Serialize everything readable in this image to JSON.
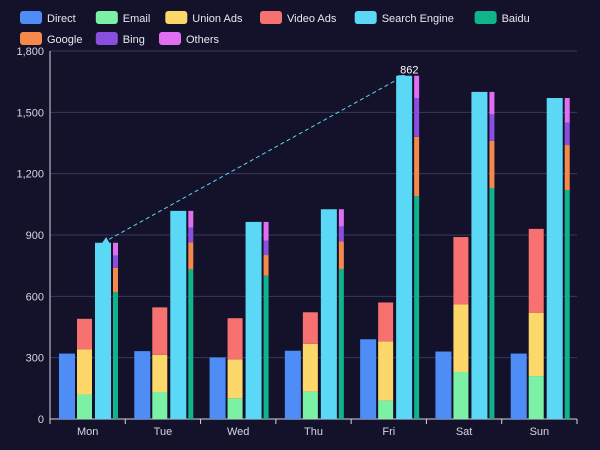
{
  "chart_data": {
    "type": "bar",
    "stacked_groups": true,
    "categories": [
      "Mon",
      "Tue",
      "Wed",
      "Thu",
      "Fri",
      "Sat",
      "Sun"
    ],
    "ylim": [
      0,
      1800
    ],
    "yticks": [
      "0",
      "300",
      "600",
      "900",
      "1,200",
      "1,500",
      "1,800"
    ],
    "grid": true,
    "legend_position": "top-left",
    "series": [
      {
        "name": "Direct",
        "stack": "direct",
        "color": "#4e8df5",
        "values": [
          320,
          332,
          301,
          334,
          390,
          330,
          320
        ]
      },
      {
        "name": "Email",
        "stack": "ad",
        "color": "#7bf1a6",
        "values": [
          120,
          132,
          101,
          134,
          90,
          230,
          210
        ]
      },
      {
        "name": "Union Ads",
        "stack": "ad",
        "color": "#fcd86a",
        "values": [
          220,
          182,
          191,
          234,
          290,
          330,
          310
        ]
      },
      {
        "name": "Video Ads",
        "stack": "ad",
        "color": "#f87171",
        "values": [
          150,
          232,
          201,
          154,
          190,
          330,
          410
        ]
      },
      {
        "name": "Search Engine",
        "stack": "search",
        "color": "#5ad8f5",
        "values": [
          862,
          1018,
          964,
          1026,
          1679,
          1600,
          1570
        ]
      },
      {
        "name": "Baidu",
        "stack": "engine",
        "color": "#10b48a",
        "values": [
          620,
          732,
          701,
          734,
          1090,
          1130,
          1120
        ]
      },
      {
        "name": "Google",
        "stack": "engine",
        "color": "#f5894a",
        "values": [
          120,
          132,
          101,
          134,
          290,
          230,
          220
        ]
      },
      {
        "name": "Bing",
        "stack": "engine",
        "color": "#8b4fe0",
        "values": [
          60,
          72,
          71,
          74,
          190,
          130,
          110
        ]
      },
      {
        "name": "Others",
        "stack": "engine",
        "color": "#e06ef0",
        "values": [
          62,
          82,
          91,
          84,
          109,
          110,
          120
        ]
      }
    ],
    "annotations": [
      {
        "type": "arrow",
        "series": "Search Engine",
        "from": "Mon",
        "to": "Fri",
        "label": "862"
      }
    ]
  }
}
